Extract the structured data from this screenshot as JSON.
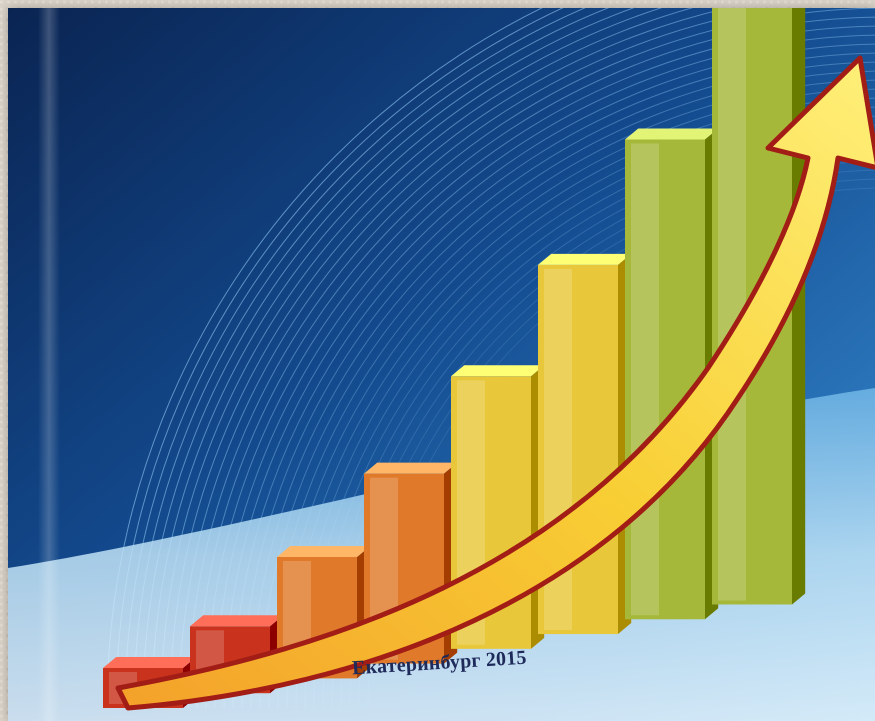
{
  "caption": "Екатеринбург 2015",
  "colors": {
    "background_dark": "#0b2a5c",
    "background_light": "#2f7fc4",
    "bar_red": "#c9321c",
    "bar_orange": "#e07a2a",
    "bar_yellow": "#e8c83a",
    "bar_green": "#a6b83a",
    "arrow_yellow": "#f7d23a",
    "arrow_red": "#b5231a",
    "caption_text": "#1e2a5a"
  },
  "chart_data": {
    "type": "bar",
    "categories": [
      "",
      "",
      "",
      "",
      "",
      "",
      "",
      ""
    ],
    "values": [
      1,
      2,
      3,
      4,
      5,
      6,
      7,
      9
    ],
    "title": "",
    "xlabel": "",
    "ylabel": "",
    "trend_arrow": "rising",
    "grid": false
  }
}
